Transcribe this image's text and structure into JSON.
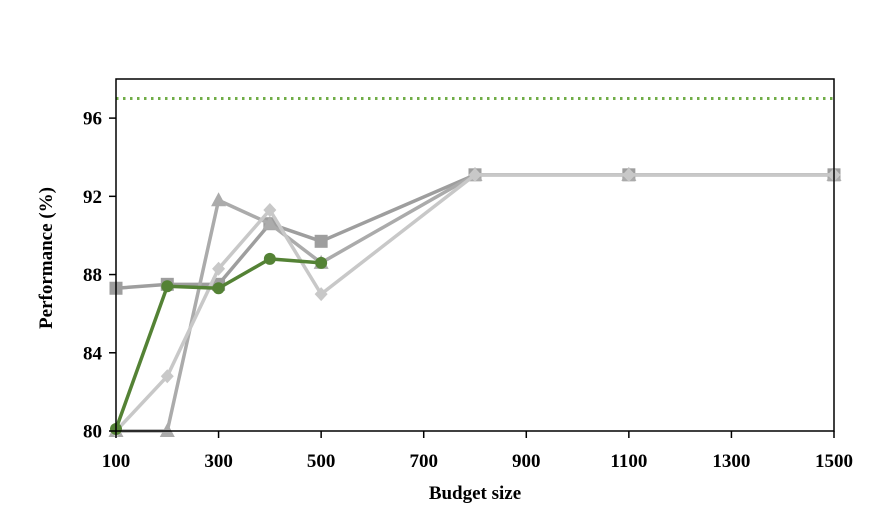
{
  "chart_data": {
    "type": "line",
    "title": "",
    "xlabel": "Budget size",
    "ylabel": "Performance (%)",
    "xlim": [
      100,
      1500
    ],
    "ylim": [
      80,
      98
    ],
    "xticks": [
      100,
      300,
      500,
      700,
      900,
      1100,
      1300,
      1500
    ],
    "yticks": [
      80,
      84,
      88,
      92,
      96
    ],
    "grid": false,
    "legend": "none",
    "reference_line": {
      "y": 97.0,
      "style": "dotted",
      "color": "#70AD47"
    },
    "series": [
      {
        "marker": "circle",
        "color": "#548235",
        "x": [
          100,
          200,
          300,
          400,
          500
        ],
        "y": [
          80.1,
          87.4,
          87.3,
          88.8,
          88.6
        ]
      },
      {
        "marker": "square",
        "color": "#9E9E9E",
        "x": [
          100,
          200,
          300,
          400,
          500,
          800,
          1100,
          1500
        ],
        "y": [
          87.3,
          87.5,
          87.5,
          90.6,
          89.7,
          93.1,
          93.1,
          93.1
        ]
      },
      {
        "marker": "triangle",
        "color": "#ABABAB",
        "x": [
          100,
          200,
          300,
          400,
          500,
          800,
          1100,
          1500
        ],
        "y": [
          80.0,
          80.0,
          91.8,
          90.6,
          88.6,
          93.1,
          93.1,
          93.1
        ]
      },
      {
        "marker": "diamond",
        "color": "#C8C8C8",
        "x": [
          100,
          200,
          300,
          400,
          500,
          800,
          1100,
          1500
        ],
        "y": [
          80.0,
          82.8,
          88.3,
          91.3,
          87.0,
          93.1,
          93.1,
          93.1
        ]
      }
    ]
  }
}
